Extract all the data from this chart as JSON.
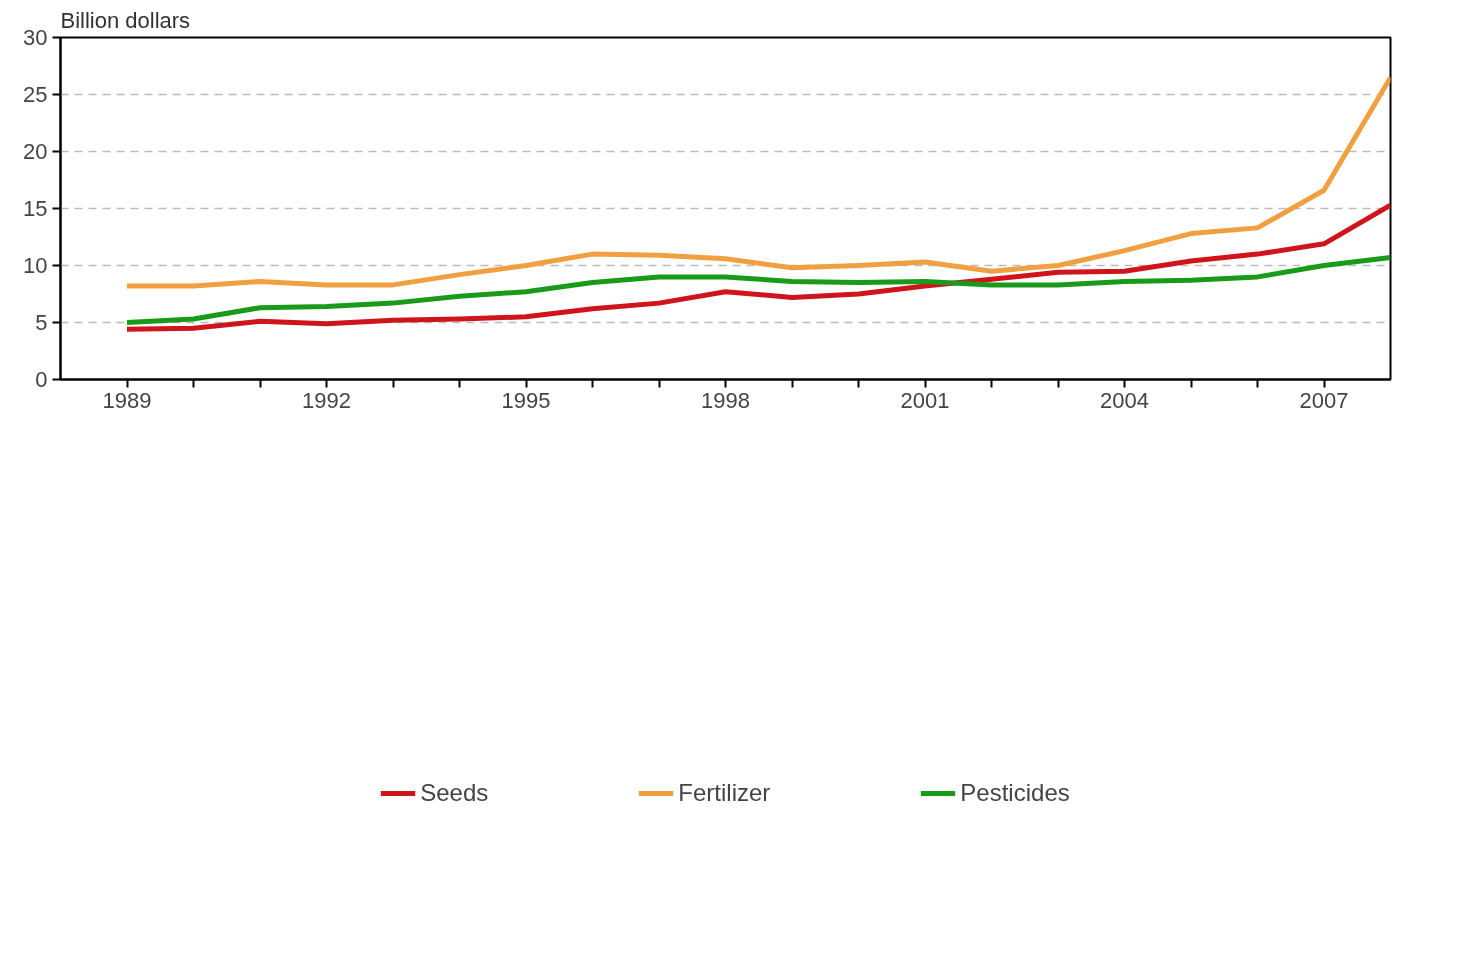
{
  "chart_data": {
    "type": "line",
    "ylabel": "Billion dollars",
    "x": [
      1989,
      1990,
      1991,
      1992,
      1993,
      1994,
      1995,
      1996,
      1997,
      1998,
      1999,
      2000,
      2001,
      2002,
      2003,
      2004,
      2005,
      2006,
      2007,
      2008
    ],
    "series": [
      {
        "name": "Seeds",
        "color": "#d0141c",
        "values": [
          4.4,
          4.5,
          5.1,
          4.9,
          5.2,
          5.3,
          5.5,
          6.2,
          6.7,
          7.7,
          7.2,
          7.5,
          8.2,
          8.8,
          9.4,
          9.5,
          10.4,
          11.0,
          11.9,
          15.3
        ]
      },
      {
        "name": "Fertilizer",
        "color": "#f0a040",
        "values": [
          8.2,
          8.2,
          8.6,
          8.3,
          8.3,
          9.2,
          10.0,
          11.0,
          10.9,
          10.6,
          9.8,
          10.0,
          10.3,
          9.5,
          10.0,
          11.3,
          12.8,
          13.3,
          16.6,
          26.5
        ]
      },
      {
        "name": "Pesticides",
        "color": "#1a9a1a",
        "values": [
          5.0,
          5.3,
          6.3,
          6.4,
          6.7,
          7.3,
          7.7,
          8.5,
          9.0,
          9.0,
          8.6,
          8.5,
          8.6,
          8.3,
          8.3,
          8.6,
          8.7,
          9.0,
          10.0,
          10.7
        ]
      }
    ],
    "xlim": [
      1988,
      2008
    ],
    "xticks": [
      1989,
      {
        "value": 1990,
        "label": null
      },
      {
        "value": 1991,
        "label": null
      },
      1992,
      {
        "value": 1993,
        "label": null
      },
      {
        "value": 1994,
        "label": null
      },
      1995,
      {
        "value": 1996,
        "label": null
      },
      {
        "value": 1997,
        "label": null
      },
      1998,
      {
        "value": 1999,
        "label": null
      },
      {
        "value": 2000,
        "label": null
      },
      2001,
      {
        "value": 2002,
        "label": null
      },
      {
        "value": 2003,
        "label": null
      },
      2004,
      {
        "value": 2005,
        "label": null
      },
      {
        "value": 2006,
        "label": null
      },
      2007
    ],
    "ylim": [
      0,
      30
    ],
    "yticks": [
      0,
      5,
      10,
      15,
      20,
      25,
      30
    ],
    "grid": "y",
    "legend": "bottom",
    "marker": "none",
    "line_style": "solid"
  }
}
